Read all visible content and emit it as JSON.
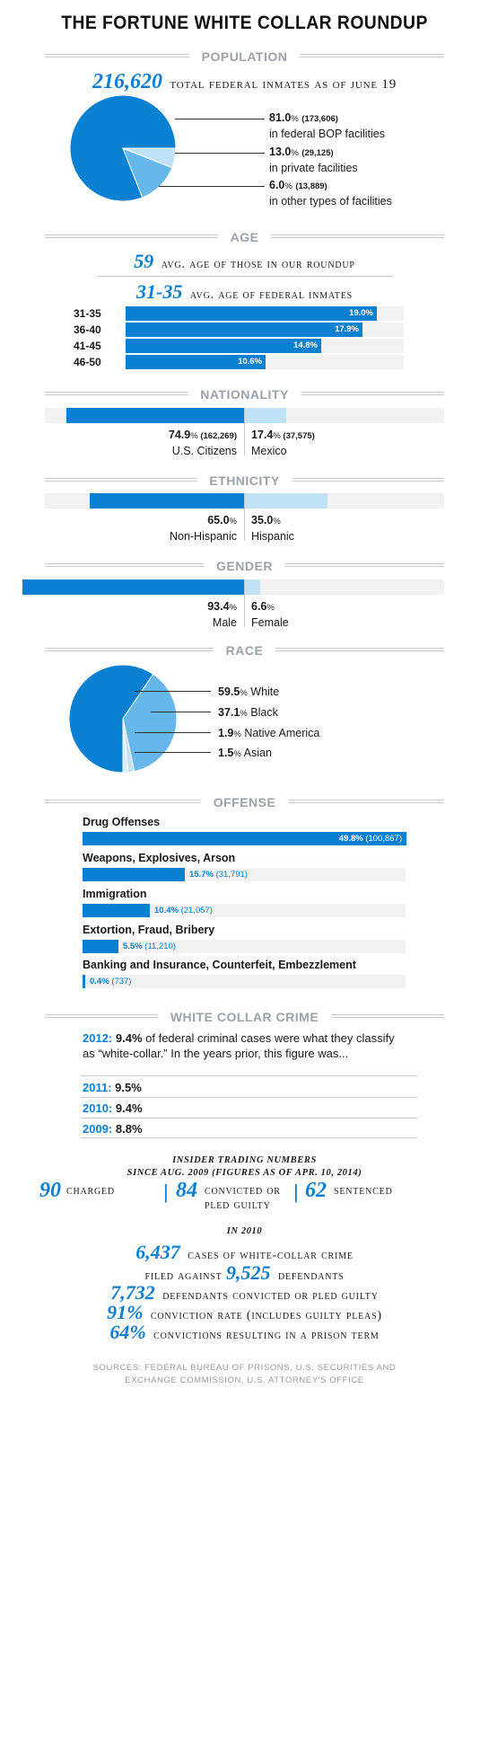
{
  "title": "THE FORTUNE WHITE COLLAR ROUNDUP",
  "sections": {
    "population": "POPULATION",
    "age": "AGE",
    "nationality": "NATIONALITY",
    "ethnicity": "ETHNICITY",
    "gender": "GENDER",
    "race": "RACE",
    "offense": "OFFENSE",
    "white_collar": "WHITE COLLAR CRIME"
  },
  "population": {
    "total": "216,620",
    "total_label": "total federal inmates as of June 19"
  },
  "age": {
    "avg_roundup": "59",
    "avg_roundup_label": "avg. age of those in our roundup",
    "avg_federal": "31-35",
    "avg_federal_label": "avg. age of federal inmates"
  },
  "white_collar": {
    "intro_year": "2012:",
    "intro_pct": "9.4%",
    "intro_text": "of federal criminal cases were what they classify as “white-collar.” In the years prior, this figure was...",
    "rows": [
      {
        "year": "2011:",
        "value": "9.5%"
      },
      {
        "year": "2010:",
        "value": "9.4%"
      },
      {
        "year": "2009:",
        "value": "8.8%"
      }
    ]
  },
  "insider": {
    "heading_line1": "Insider trading numbers",
    "heading_line2": "since Aug. 2009 (figures as of Apr. 10, 2014)",
    "charged_num": "90",
    "charged_label": "charged",
    "convicted_num": "84",
    "convicted_label1": "convicted or",
    "convicted_label2": "pled guilty",
    "sentenced_num": "62",
    "sentenced_label": "sentenced",
    "sep": "|"
  },
  "y2010": {
    "heading": "in 2010",
    "cases_num": "6,437",
    "cases_label": "cases of white-collar crime",
    "filed_label": "filed against",
    "defendants_num": "9,525",
    "defendants_label": "defendants",
    "convicted_num": "7,732",
    "convicted_label": "defendants convicted or pled guilty",
    "rate_num": "91%",
    "rate_label": "conviction rate (includes guilty pleas)",
    "prison_num": "64%",
    "prison_label": "convictions resulting in a prison term"
  },
  "sources": {
    "line1": "Sources: Federal Bureau of Prisons, U.S. Securities and",
    "line2": "Exchange Commission, U.S. Attorney's Office"
  },
  "colors": {
    "primary": "#0a80d2",
    "light": "#66b8ec",
    "lighter": "#bfe2f7",
    "track": "#f2f2f2",
    "heading_gray": "#9aa2aa"
  },
  "chart_data": [
    {
      "type": "pie",
      "name": "population",
      "slices": [
        {
          "pct": "81.0",
          "count": "(173,606)",
          "label": "in federal BOP facilities",
          "value": 81.0
        },
        {
          "pct": "13.0",
          "count": "(29,125)",
          "label": "in private facilities",
          "value": 13.0
        },
        {
          "pct": "6.0",
          "count": "(13,889)",
          "label": "in other types of facilities",
          "value": 6.0
        }
      ]
    },
    {
      "type": "bar",
      "name": "age",
      "categories": [
        "31-35",
        "36-40",
        "41-45",
        "46-50"
      ],
      "values": [
        19.0,
        17.9,
        14.8,
        10.6
      ],
      "labels": [
        "19.0%",
        "17.9%",
        "14.8%",
        "10.6%"
      ],
      "xlim": [
        0,
        21
      ]
    },
    {
      "type": "bar",
      "name": "nationality",
      "left": {
        "pct": "74.9",
        "count": "(162,269)",
        "label": "U.S. Citizens",
        "value": 74.9
      },
      "right": {
        "pct": "17.4",
        "count": "(37,575)",
        "label": "Mexico",
        "value": 17.4
      }
    },
    {
      "type": "bar",
      "name": "ethnicity",
      "left": {
        "pct": "65.0",
        "count": "",
        "label": "Non-Hispanic",
        "value": 65.0
      },
      "right": {
        "pct": "35.0",
        "count": "",
        "label": "Hispanic",
        "value": 35.0
      }
    },
    {
      "type": "bar",
      "name": "gender",
      "left": {
        "pct": "93.4",
        "count": "",
        "label": "Male",
        "value": 93.4
      },
      "right": {
        "pct": "6.6",
        "count": "",
        "label": "Female",
        "value": 6.6
      }
    },
    {
      "type": "pie",
      "name": "race",
      "slices": [
        {
          "pct": "59.5",
          "label": "White",
          "value": 59.5
        },
        {
          "pct": "37.1",
          "label": "Black",
          "value": 37.1
        },
        {
          "pct": "1.9",
          "label": "Native America",
          "value": 1.9
        },
        {
          "pct": "1.5",
          "label": "Asian",
          "value": 1.5
        }
      ]
    },
    {
      "type": "bar",
      "name": "offense",
      "categories": [
        "Drug Offenses",
        "Weapons, Explosives, Arson",
        "Immigration",
        "Extortion, Fraud, Bribery",
        "Banking and Insurance, Counterfeit, Embezzlement"
      ],
      "values": [
        49.8,
        15.7,
        10.4,
        5.5,
        0.4
      ],
      "pct_labels": [
        "49.8%",
        "15.7%",
        "10.4%",
        "5.5%",
        "0.4%"
      ],
      "counts": [
        "(100,867)",
        "(31,791)",
        "(21,057)",
        "(11,210)",
        "(737)"
      ],
      "xlim": [
        0,
        50
      ]
    }
  ]
}
